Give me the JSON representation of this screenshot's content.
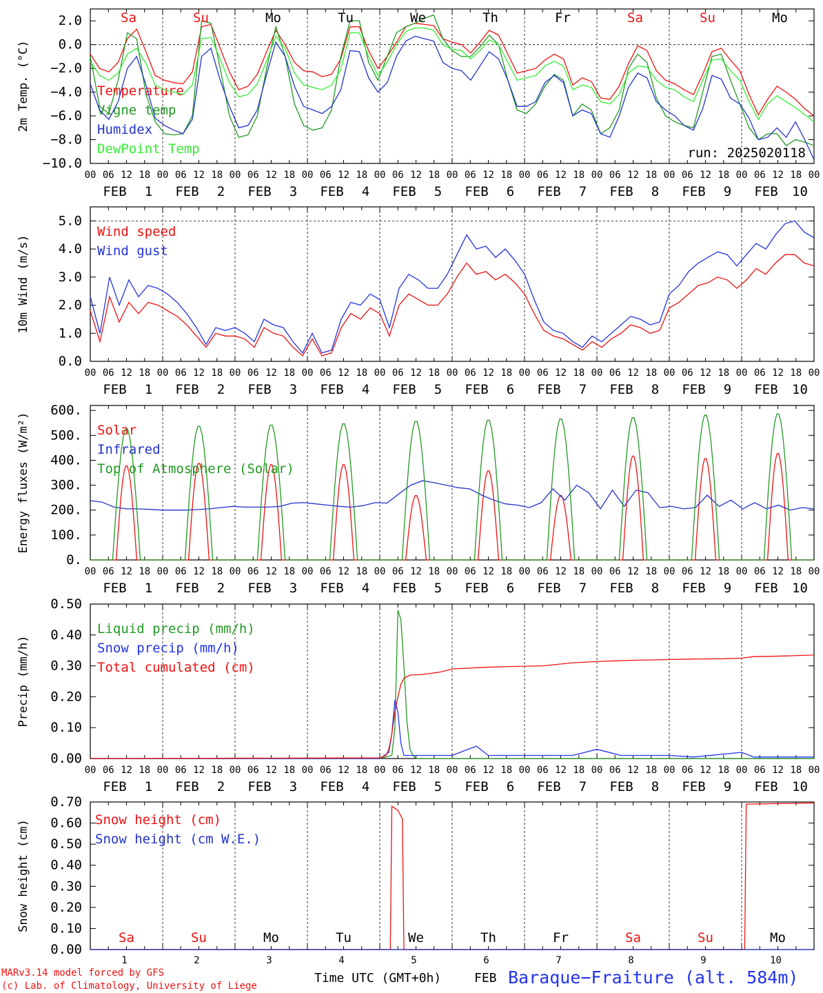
{
  "chart_data": [
    {
      "type": "line",
      "ylabel": "2m Temp. (°C)",
      "ylim": [
        -10,
        3
      ],
      "yticks": [
        -10.0,
        -8.0,
        -6.0,
        -4.0,
        -2.0,
        0.0,
        2.0
      ],
      "ytick_labels": [
        "−10.0",
        "−8.0",
        "−6.0",
        "−4.0",
        "−2.0",
        "0.0",
        "2.0"
      ],
      "ref_lines": [
        0
      ],
      "annotation": "run: 2025020118",
      "series": [
        {
          "name": "Temperature",
          "color": "#ee1111",
          "values": [
            -0.8,
            -2.0,
            -2.3,
            -1.5,
            0.5,
            1.3,
            -0.6,
            -2.6,
            -3.0,
            -3.2,
            -3.3,
            -2.3,
            1.5,
            1.7,
            -0.3,
            -2.3,
            -3.8,
            -3.5,
            -2.5,
            -0.6,
            1.2,
            0.0,
            -1.5,
            -2.2,
            -2.3,
            -2.7,
            -2.5,
            -1.2,
            1.5,
            1.5,
            -0.5,
            -2.0,
            -1.0,
            0.2,
            1.5,
            1.8,
            1.7,
            1.6,
            0.5,
            0.2,
            0.0,
            -0.7,
            0.2,
            1.2,
            0.8,
            -0.8,
            -2.4,
            -2.2,
            -2.0,
            -1.3,
            -0.8,
            -1.2,
            -3.4,
            -2.8,
            -3.1,
            -4.5,
            -4.6,
            -3.5,
            -1.6,
            -0.1,
            -0.5,
            -2.2,
            -3.0,
            -3.3,
            -3.8,
            -4.2,
            -2.5,
            -0.6,
            -0.3,
            -1.3,
            -2.2,
            -4.2,
            -5.9,
            -4.6,
            -3.5,
            -4.0,
            -4.6,
            -5.4,
            -6.0
          ]
        },
        {
          "name": "Vigne temp",
          "color": "#229922",
          "values": [
            -1.0,
            -5.2,
            -5.8,
            -3.0,
            1.0,
            0.5,
            -4.2,
            -6.5,
            -7.5,
            -7.6,
            -7.5,
            -6.0,
            2.0,
            1.8,
            -2.0,
            -6.0,
            -7.8,
            -7.6,
            -6.0,
            -2.0,
            1.5,
            -1.0,
            -5.0,
            -6.8,
            -7.2,
            -7.0,
            -5.5,
            -1.0,
            2.0,
            2.0,
            -1.5,
            -3.0,
            -1.0,
            1.0,
            1.5,
            1.8,
            2.2,
            2.5,
            0.5,
            -0.5,
            -1.0,
            -1.0,
            -0.2,
            0.8,
            0.0,
            -3.0,
            -5.5,
            -5.8,
            -5.0,
            -3.5,
            -2.5,
            -3.0,
            -6.0,
            -5.0,
            -5.5,
            -7.5,
            -7.0,
            -5.5,
            -2.0,
            -0.8,
            -1.5,
            -4.5,
            -6.0,
            -6.5,
            -6.8,
            -7.0,
            -4.0,
            -1.0,
            -0.8,
            -3.0,
            -5.0,
            -7.0,
            -8.0,
            -7.5,
            -7.5,
            -8.5,
            -8.0,
            -8.2,
            -8.5
          ]
        },
        {
          "name": "Humidex",
          "color": "#2233cc",
          "values": [
            -3.3,
            -5.5,
            -6.3,
            -4.8,
            -2.0,
            -1.0,
            -3.4,
            -6.2,
            -6.8,
            -7.2,
            -7.5,
            -6.3,
            -1.0,
            -0.3,
            -3.0,
            -5.2,
            -7.0,
            -6.8,
            -5.5,
            -2.5,
            0.2,
            -1.0,
            -3.5,
            -5.2,
            -5.5,
            -5.8,
            -5.2,
            -3.8,
            -0.5,
            -0.6,
            -2.8,
            -4.0,
            -3.2,
            -1.0,
            0.3,
            0.7,
            0.5,
            0.3,
            -1.5,
            -2.0,
            -2.2,
            -3.0,
            -1.8,
            -0.6,
            -1.2,
            -3.0,
            -5.2,
            -5.2,
            -4.8,
            -3.2,
            -2.6,
            -3.2,
            -6.0,
            -5.5,
            -5.8,
            -7.5,
            -7.8,
            -6.0,
            -3.6,
            -2.4,
            -2.8,
            -4.8,
            -5.5,
            -6.0,
            -6.8,
            -7.2,
            -5.4,
            -2.6,
            -2.9,
            -4.5,
            -5.0,
            -6.2,
            -8.0,
            -7.8,
            -7.0,
            -7.8,
            -6.5,
            -8.0,
            -9.7
          ]
        },
        {
          "name": "DewPoint Temp",
          "color": "#33ee33",
          "values": [
            -1.4,
            -2.6,
            -3.0,
            -2.4,
            -0.8,
            -0.3,
            -1.6,
            -3.4,
            -3.8,
            -4.0,
            -4.2,
            -3.4,
            0.5,
            0.6,
            -1.2,
            -3.2,
            -4.4,
            -4.2,
            -3.3,
            -1.4,
            0.7,
            -0.3,
            -2.4,
            -3.4,
            -3.6,
            -3.8,
            -3.4,
            -2.1,
            1.0,
            1.0,
            -1.0,
            -2.6,
            -1.5,
            0.0,
            1.1,
            1.4,
            1.4,
            1.2,
            0.0,
            -0.4,
            -0.5,
            -1.2,
            -0.5,
            0.4,
            0.0,
            -1.5,
            -3.0,
            -2.8,
            -2.6,
            -1.8,
            -1.4,
            -1.8,
            -3.8,
            -3.4,
            -3.6,
            -4.8,
            -5.0,
            -4.2,
            -2.4,
            -1.8,
            -1.9,
            -3.0,
            -3.6,
            -3.8,
            -4.4,
            -4.8,
            -3.0,
            -1.3,
            -1.2,
            -2.2,
            -3.0,
            -4.8,
            -6.3,
            -5.0,
            -4.3,
            -4.8,
            -5.3,
            -5.9,
            -6.5
          ]
        }
      ]
    },
    {
      "type": "line",
      "ylabel": "10m Wind (m/s)",
      "ylim": [
        0,
        5.5
      ],
      "yticks": [
        0.0,
        1.0,
        2.0,
        3.0,
        4.0,
        5.0
      ],
      "ytick_labels": [
        "0.0",
        "1.0",
        "2.0",
        "3.0",
        "4.0",
        "5.0"
      ],
      "ref_lines": [
        5.0
      ],
      "series": [
        {
          "name": "Wind speed",
          "color": "#ee1111",
          "values": [
            1.8,
            0.7,
            2.3,
            1.4,
            2.1,
            1.7,
            2.1,
            2.0,
            1.8,
            1.6,
            1.3,
            0.9,
            0.5,
            1.0,
            0.9,
            0.9,
            0.8,
            0.5,
            1.2,
            1.0,
            0.9,
            0.5,
            0.2,
            0.8,
            0.2,
            0.3,
            1.2,
            1.7,
            1.5,
            1.9,
            1.7,
            0.9,
            2.0,
            2.4,
            2.2,
            2.0,
            2.0,
            2.4,
            3.0,
            3.5,
            3.1,
            3.2,
            2.9,
            3.1,
            2.8,
            2.4,
            1.7,
            1.1,
            0.9,
            0.8,
            0.6,
            0.4,
            0.7,
            0.5,
            0.8,
            1.0,
            1.3,
            1.2,
            1.0,
            1.1,
            1.9,
            2.1,
            2.4,
            2.7,
            2.8,
            3.0,
            2.9,
            2.6,
            2.9,
            3.3,
            3.1,
            3.5,
            3.8,
            3.8,
            3.5,
            3.4
          ]
        },
        {
          "name": "Wind gust",
          "color": "#2233dd",
          "values": [
            2.3,
            1.0,
            3.0,
            2.0,
            2.9,
            2.3,
            2.7,
            2.6,
            2.4,
            2.1,
            1.7,
            1.2,
            0.6,
            1.2,
            1.1,
            1.2,
            1.0,
            0.7,
            1.5,
            1.3,
            1.2,
            0.7,
            0.3,
            1.0,
            0.3,
            0.4,
            1.5,
            2.1,
            2.0,
            2.4,
            2.2,
            1.2,
            2.6,
            3.1,
            2.9,
            2.6,
            2.6,
            3.1,
            3.8,
            4.5,
            4.0,
            4.1,
            3.7,
            4.0,
            3.6,
            3.1,
            2.2,
            1.4,
            1.1,
            1.0,
            0.7,
            0.5,
            0.9,
            0.7,
            1.0,
            1.3,
            1.6,
            1.5,
            1.3,
            1.4,
            2.4,
            2.7,
            3.2,
            3.5,
            3.7,
            3.9,
            3.8,
            3.4,
            3.8,
            4.2,
            4.0,
            4.5,
            4.9,
            5.0,
            4.6,
            4.4
          ]
        }
      ]
    },
    {
      "type": "line",
      "ylabel": "Energy fluxes (W/m²)",
      "ylim": [
        0,
        620
      ],
      "yticks": [
        0,
        100,
        200,
        300,
        400,
        500,
        600
      ],
      "ytick_labels": [
        "0.",
        "100.",
        "200.",
        "300.",
        "400.",
        "500.",
        "600."
      ],
      "ref_lines": [],
      "series": [
        {
          "name": "Solar",
          "color": "#ee1111",
          "peaks": [
            380,
            390,
            385,
            385,
            260,
            360,
            260,
            420,
            410,
            430
          ]
        },
        {
          "name": "Infrared",
          "color": "#2233cc",
          "values": [
            238,
            232,
            212,
            205,
            205,
            203,
            200,
            200,
            200,
            202,
            205,
            210,
            215,
            212,
            212,
            212,
            215,
            228,
            230,
            225,
            220,
            215,
            212,
            218,
            230,
            228,
            265,
            300,
            318,
            310,
            300,
            290,
            285,
            260,
            240,
            225,
            220,
            210,
            230,
            285,
            240,
            300,
            270,
            205,
            280,
            215,
            280,
            270,
            210,
            215,
            205,
            210,
            260,
            215,
            240,
            205,
            230,
            205,
            220,
            200,
            210,
            205
          ]
        },
        {
          "name": "Top of Atmosphere (Solar)",
          "color": "#229922",
          "peaks": [
            530,
            540,
            545,
            550,
            560,
            565,
            570,
            575,
            585,
            590
          ]
        }
      ]
    },
    {
      "type": "line",
      "ylabel": "Precip (mm/h)",
      "ylim": [
        0,
        0.5
      ],
      "yticks": [
        0.0,
        0.1,
        0.2,
        0.3,
        0.4,
        0.5
      ],
      "ytick_labels": [
        "0.00",
        "0.10",
        "0.20",
        "0.30",
        "0.40",
        "0.50"
      ],
      "ref_lines": [],
      "series": [
        {
          "name": "Liquid precip (mm/h)",
          "color": "#229922",
          "x": [
            0,
            96,
            100,
            101,
            102,
            103,
            104,
            105,
            106,
            107,
            108,
            240
          ],
          "values": [
            0,
            0,
            0.01,
            0.1,
            0.48,
            0.45,
            0.3,
            0.12,
            0.03,
            0.01,
            0,
            0
          ]
        },
        {
          "name": "Snow precip (mm/h)",
          "color": "#2233ee",
          "x": [
            0,
            96,
            99,
            100,
            101,
            102,
            103,
            104,
            106,
            110,
            120,
            128,
            132,
            136,
            145,
            152,
            160,
            168,
            176,
            184,
            188,
            190,
            192,
            200,
            216,
            220,
            240
          ],
          "values": [
            0,
            0,
            0.02,
            0.08,
            0.19,
            0.15,
            0.05,
            0.01,
            0.01,
            0.01,
            0.01,
            0.04,
            0.01,
            0.01,
            0.01,
            0.01,
            0.01,
            0.03,
            0.01,
            0.01,
            0.01,
            0.01,
            0.01,
            0.005,
            0.02,
            0.005,
            0.005
          ]
        },
        {
          "name": "Total cumulated (cm)",
          "color": "#ee1111",
          "x": [
            0,
            96,
            98,
            99,
            100,
            101,
            102,
            103,
            104,
            106,
            110,
            116,
            120,
            130,
            140,
            150,
            160,
            170,
            180,
            190,
            200,
            210,
            216,
            220,
            230,
            240
          ],
          "values": [
            0,
            0.002,
            0.01,
            0.03,
            0.08,
            0.15,
            0.2,
            0.24,
            0.26,
            0.27,
            0.272,
            0.28,
            0.29,
            0.295,
            0.298,
            0.3,
            0.31,
            0.315,
            0.318,
            0.32,
            0.322,
            0.323,
            0.325,
            0.33,
            0.332,
            0.335
          ]
        }
      ]
    },
    {
      "type": "line",
      "ylabel": "Snow height (cm)",
      "ylim": [
        0,
        0.7
      ],
      "yticks": [
        0.0,
        0.1,
        0.2,
        0.3,
        0.4,
        0.5,
        0.6,
        0.7
      ],
      "ytick_labels": [
        "0.00",
        "0.10",
        "0.20",
        "0.30",
        "0.40",
        "0.50",
        "0.60",
        "0.70"
      ],
      "ref_lines": [],
      "series": [
        {
          "name": "Snow height (cm)",
          "color": "#ee1111",
          "x": [
            0,
            99.5,
            100,
            102,
            103.5,
            104,
            217,
            217.5,
            240
          ],
          "values": [
            0,
            0,
            0.68,
            0.66,
            0.62,
            0,
            0,
            0.69,
            0.695
          ]
        },
        {
          "name": "Snow height (cm W.E.)",
          "color": "#2233cc",
          "x": [
            0,
            240
          ],
          "values": [
            0,
            0
          ]
        }
      ]
    }
  ],
  "hour_ticks": [
    "00",
    "06",
    "12",
    "18"
  ],
  "month": "FEB",
  "dates": [
    "1",
    "2",
    "3",
    "4",
    "5",
    "6",
    "7",
    "8",
    "9",
    "10"
  ],
  "weekdays": [
    {
      "label": "Sa",
      "color": "#ee1111"
    },
    {
      "label": "Su",
      "color": "#ee1111"
    },
    {
      "label": "Mo",
      "color": "#000000"
    },
    {
      "label": "Tu",
      "color": "#000000"
    },
    {
      "label": "We",
      "color": "#000000"
    },
    {
      "label": "Th",
      "color": "#000000"
    },
    {
      "label": "Fr",
      "color": "#000000"
    },
    {
      "label": "Sa",
      "color": "#ee1111"
    },
    {
      "label": "Su",
      "color": "#ee1111"
    },
    {
      "label": "Mo",
      "color": "#000000"
    }
  ],
  "footer": {
    "credit_line1": "MARv3.14 model forced by GFS",
    "credit_line2": "(c) Lab. of Climatology, University of Liege",
    "xlabel": "Time UTC (GMT+0h)",
    "month_label": "FEB",
    "station": "Baraque−Fraiture (alt. 584m)"
  }
}
